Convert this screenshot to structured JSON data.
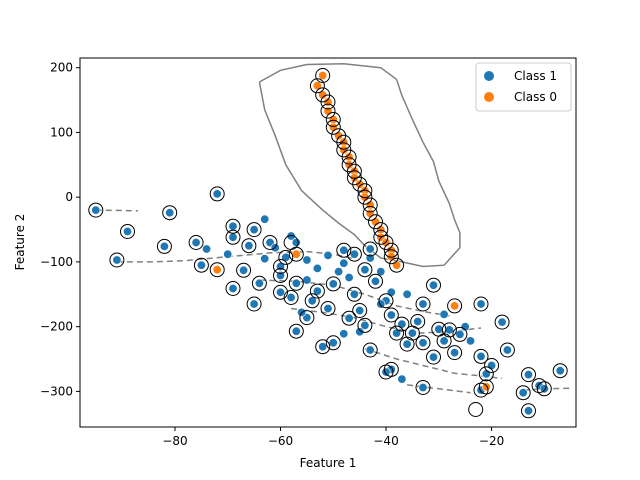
{
  "chart_data": {
    "type": "scatter",
    "xlabel": "Feature 1",
    "ylabel": "Feature 2",
    "xlim": [
      -98,
      -4
    ],
    "ylim": [
      -355,
      215
    ],
    "x_ticks": [
      -80,
      -60,
      -40,
      -20
    ],
    "y_ticks": [
      -300,
      -200,
      -100,
      0,
      100,
      200
    ],
    "x_tick_labels": [
      "−80",
      "−60",
      "−40",
      "−20"
    ],
    "y_tick_labels": [
      "−300",
      "−200",
      "−100",
      "0",
      "100",
      "200"
    ],
    "grid": false,
    "legend_position": "top-right",
    "series": [
      {
        "name": "Class 1",
        "color": "#1f77b4",
        "points": [
          [
            -95,
            -20
          ],
          [
            -89,
            -53
          ],
          [
            -91,
            -97
          ],
          [
            -82,
            -76
          ],
          [
            -81,
            -24
          ],
          [
            -72,
            5
          ],
          [
            -76,
            -70
          ],
          [
            -75,
            -105
          ],
          [
            -74,
            -80
          ],
          [
            -70,
            -88
          ],
          [
            -69,
            -62
          ],
          [
            -69,
            -45
          ],
          [
            -65,
            -50
          ],
          [
            -63,
            -34
          ],
          [
            -62,
            -70
          ],
          [
            -66,
            -75
          ],
          [
            -67,
            -113
          ],
          [
            -69,
            -141
          ],
          [
            -65,
            -165
          ],
          [
            -64,
            -133
          ],
          [
            -63,
            -95
          ],
          [
            -60,
            -107
          ],
          [
            -59,
            -93
          ],
          [
            -60,
            -121
          ],
          [
            -60,
            -147
          ],
          [
            -58,
            -155
          ],
          [
            -57,
            -133
          ],
          [
            -55,
            -128
          ],
          [
            -54,
            -160
          ],
          [
            -55,
            -186
          ],
          [
            -57,
            -207
          ],
          [
            -56,
            -178
          ],
          [
            -53,
            -145
          ],
          [
            -51,
            -172
          ],
          [
            -50,
            -134
          ],
          [
            -49,
            -115
          ],
          [
            -48,
            -102
          ],
          [
            -47,
            -124
          ],
          [
            -46,
            -150
          ],
          [
            -45,
            -175
          ],
          [
            -44,
            -198
          ],
          [
            -42,
            -130
          ],
          [
            -40,
            -160
          ],
          [
            -39,
            -182
          ],
          [
            -38,
            -210
          ],
          [
            -37,
            -196
          ],
          [
            -36,
            -227
          ],
          [
            -35,
            -210
          ],
          [
            -34,
            -192
          ],
          [
            -33,
            -225
          ],
          [
            -31,
            -247
          ],
          [
            -30,
            -204
          ],
          [
            -29,
            -222
          ],
          [
            -28,
            -205
          ],
          [
            -27,
            -240
          ],
          [
            -26,
            -212
          ],
          [
            -25,
            -200
          ],
          [
            -24,
            -222
          ],
          [
            -22,
            -165
          ],
          [
            -22,
            -246
          ],
          [
            -21,
            -273
          ],
          [
            -22,
            -298
          ],
          [
            -20,
            -260
          ],
          [
            -18,
            -193
          ],
          [
            -17,
            -236
          ],
          [
            -14,
            -302
          ],
          [
            -13,
            -274
          ],
          [
            -11,
            -291
          ],
          [
            -10,
            -296
          ],
          [
            -7,
            -268
          ],
          [
            -13,
            -330
          ],
          [
            -33,
            -294
          ],
          [
            -37,
            -281
          ],
          [
            -39,
            -266
          ],
          [
            -40,
            -270
          ],
          [
            -43,
            -236
          ],
          [
            -45,
            -208
          ],
          [
            -48,
            -211
          ],
          [
            -50,
            -225
          ],
          [
            -52,
            -231
          ],
          [
            -47,
            -187
          ],
          [
            -41,
            -165
          ],
          [
            -39,
            -147
          ],
          [
            -36,
            -150
          ],
          [
            -33,
            -165
          ],
          [
            -31,
            -136
          ],
          [
            -29,
            -181
          ],
          [
            -27,
            -168
          ],
          [
            -44,
            -112
          ],
          [
            -43,
            -94
          ],
          [
            -41,
            -115
          ],
          [
            -58,
            -60
          ],
          [
            -57,
            -70
          ],
          [
            -61,
            -78
          ],
          [
            -55,
            -97
          ],
          [
            -53,
            -110
          ],
          [
            -51,
            -90
          ],
          [
            -48,
            -82
          ],
          [
            -46,
            -88
          ],
          [
            -43,
            -80
          ]
        ]
      },
      {
        "name": "Class 0",
        "color": "#ff7f0e",
        "points": [
          [
            -52,
            188
          ],
          [
            -53,
            172
          ],
          [
            -52,
            158
          ],
          [
            -51,
            147
          ],
          [
            -51,
            133
          ],
          [
            -50,
            120
          ],
          [
            -50,
            108
          ],
          [
            -49,
            95
          ],
          [
            -48,
            85
          ],
          [
            -48,
            73
          ],
          [
            -47,
            62
          ],
          [
            -47,
            50
          ],
          [
            -46,
            40
          ],
          [
            -46,
            30
          ],
          [
            -45,
            20
          ],
          [
            -44,
            10
          ],
          [
            -44,
            0
          ],
          [
            -43,
            -12
          ],
          [
            -43,
            -25
          ],
          [
            -42,
            -38
          ],
          [
            -41,
            -50
          ],
          [
            -41,
            -62
          ],
          [
            -40,
            -70
          ],
          [
            -39,
            -82
          ],
          [
            -39,
            -92
          ],
          [
            -38,
            -105
          ],
          [
            -57,
            -88
          ],
          [
            -72,
            -112
          ],
          [
            -27,
            -168
          ],
          [
            -21,
            -293
          ]
        ]
      }
    ],
    "support_vectors": [
      [
        -95,
        -20
      ],
      [
        -89,
        -53
      ],
      [
        -91,
        -97
      ],
      [
        -82,
        -76
      ],
      [
        -81,
        -24
      ],
      [
        -72,
        5
      ],
      [
        -76,
        -70
      ],
      [
        -75,
        -105
      ],
      [
        -72,
        -112
      ],
      [
        -69,
        -62
      ],
      [
        -69,
        -45
      ],
      [
        -65,
        -50
      ],
      [
        -62,
        -70
      ],
      [
        -66,
        -75
      ],
      [
        -67,
        -113
      ],
      [
        -69,
        -141
      ],
      [
        -65,
        -165
      ],
      [
        -64,
        -133
      ],
      [
        -60,
        -107
      ],
      [
        -59,
        -93
      ],
      [
        -60,
        -121
      ],
      [
        -60,
        -147
      ],
      [
        -58,
        -155
      ],
      [
        -57,
        -133
      ],
      [
        -54,
        -160
      ],
      [
        -55,
        -186
      ],
      [
        -57,
        -207
      ],
      [
        -53,
        -145
      ],
      [
        -51,
        -172
      ],
      [
        -57,
        -88
      ],
      [
        -58,
        -70
      ],
      [
        -52,
        188
      ],
      [
        -53,
        172
      ],
      [
        -52,
        158
      ],
      [
        -51,
        147
      ],
      [
        -51,
        133
      ],
      [
        -50,
        120
      ],
      [
        -50,
        108
      ],
      [
        -49,
        95
      ],
      [
        -48,
        85
      ],
      [
        -48,
        73
      ],
      [
        -47,
        62
      ],
      [
        -47,
        50
      ],
      [
        -46,
        40
      ],
      [
        -46,
        30
      ],
      [
        -45,
        20
      ],
      [
        -44,
        10
      ],
      [
        -44,
        0
      ],
      [
        -43,
        -12
      ],
      [
        -43,
        -25
      ],
      [
        -42,
        -38
      ],
      [
        -41,
        -50
      ],
      [
        -41,
        -62
      ],
      [
        -40,
        -70
      ],
      [
        -39,
        -82
      ],
      [
        -39,
        -92
      ],
      [
        -38,
        -105
      ],
      [
        -48,
        -82
      ],
      [
        -46,
        -88
      ],
      [
        -43,
        -80
      ],
      [
        -45,
        -175
      ],
      [
        -44,
        -198
      ],
      [
        -42,
        -130
      ],
      [
        -40,
        -160
      ],
      [
        -39,
        -182
      ],
      [
        -38,
        -210
      ],
      [
        -37,
        -196
      ],
      [
        -36,
        -227
      ],
      [
        -35,
        -210
      ],
      [
        -34,
        -192
      ],
      [
        -33,
        -225
      ],
      [
        -31,
        -247
      ],
      [
        -30,
        -204
      ],
      [
        -29,
        -222
      ],
      [
        -28,
        -205
      ],
      [
        -27,
        -240
      ],
      [
        -26,
        -212
      ],
      [
        -27,
        -168
      ],
      [
        -22,
        -165
      ],
      [
        -22,
        -246
      ],
      [
        -21,
        -273
      ],
      [
        -22,
        -298
      ],
      [
        -20,
        -260
      ],
      [
        -18,
        -193
      ],
      [
        -17,
        -236
      ],
      [
        -14,
        -302
      ],
      [
        -13,
        -274
      ],
      [
        -11,
        -291
      ],
      [
        -10,
        -296
      ],
      [
        -7,
        -268
      ],
      [
        -13,
        -330
      ],
      [
        -33,
        -294
      ],
      [
        -39,
        -266
      ],
      [
        -40,
        -270
      ],
      [
        -43,
        -236
      ],
      [
        -50,
        -225
      ],
      [
        -52,
        -231
      ],
      [
        -33,
        -165
      ],
      [
        -31,
        -136
      ],
      [
        -44,
        -112
      ],
      [
        -23,
        -328
      ],
      [
        -21,
        -293
      ],
      [
        -50,
        -134
      ],
      [
        -46,
        -150
      ],
      [
        -47,
        -187
      ]
    ],
    "contours": [
      {
        "style": "solid",
        "color": "#808080",
        "points": [
          [
            -64,
            178
          ],
          [
            -60,
            196
          ],
          [
            -55,
            205
          ],
          [
            -48,
            206
          ],
          [
            -41,
            200
          ],
          [
            -38,
            182
          ],
          [
            -37,
            157
          ],
          [
            -35,
            120
          ],
          [
            -33,
            85
          ],
          [
            -31,
            55
          ],
          [
            -30,
            25
          ],
          [
            -28,
            -10
          ],
          [
            -27,
            -35
          ],
          [
            -26,
            -55
          ],
          [
            -26,
            -78
          ],
          [
            -29,
            -105
          ],
          [
            -33,
            -107
          ],
          [
            -37,
            -100
          ],
          [
            -41,
            -94
          ],
          [
            -44,
            -75
          ],
          [
            -46,
            -58
          ],
          [
            -49,
            -40
          ],
          [
            -52,
            -20
          ],
          [
            -56,
            10
          ],
          [
            -59,
            50
          ],
          [
            -61,
            95
          ],
          [
            -63,
            135
          ],
          [
            -64,
            178
          ]
        ]
      },
      {
        "style": "dashed",
        "color": "#808080",
        "points": [
          [
            -95,
            -20
          ],
          [
            -87,
            -21
          ]
        ]
      },
      {
        "style": "dashed",
        "color": "#808080",
        "points": [
          [
            -91,
            -100
          ],
          [
            -84,
            -100
          ],
          [
            -78,
            -98
          ],
          [
            -70,
            -92
          ],
          [
            -62,
            -86
          ],
          [
            -55,
            -84
          ],
          [
            -50,
            -88
          ],
          [
            -46,
            -95
          ]
        ]
      },
      {
        "style": "dashed",
        "color": "#808080",
        "points": [
          [
            -64,
            -128
          ],
          [
            -57,
            -130
          ],
          [
            -50,
            -136
          ],
          [
            -44,
            -150
          ],
          [
            -38,
            -168
          ],
          [
            -32,
            -178
          ],
          [
            -28,
            -183
          ]
        ]
      },
      {
        "style": "dashed",
        "color": "#808080",
        "points": [
          [
            -58,
            -172
          ],
          [
            -52,
            -178
          ],
          [
            -46,
            -186
          ],
          [
            -40,
            -200
          ],
          [
            -34,
            -210
          ],
          [
            -28,
            -208
          ],
          [
            -22,
            -202
          ]
        ]
      },
      {
        "style": "dashed",
        "color": "#808080",
        "points": [
          [
            -44,
            -234
          ],
          [
            -38,
            -250
          ],
          [
            -32,
            -262
          ],
          [
            -27,
            -272
          ],
          [
            -22,
            -276
          ],
          [
            -18,
            -280
          ]
        ]
      },
      {
        "style": "dashed",
        "color": "#808080",
        "points": [
          [
            -36,
            -290
          ],
          [
            -30,
            -296
          ],
          [
            -24,
            -302
          ]
        ]
      },
      {
        "style": "dashed",
        "color": "#808080",
        "points": [
          [
            -14,
            -298
          ],
          [
            -10,
            -296
          ],
          [
            -5,
            -295
          ]
        ]
      }
    ]
  }
}
